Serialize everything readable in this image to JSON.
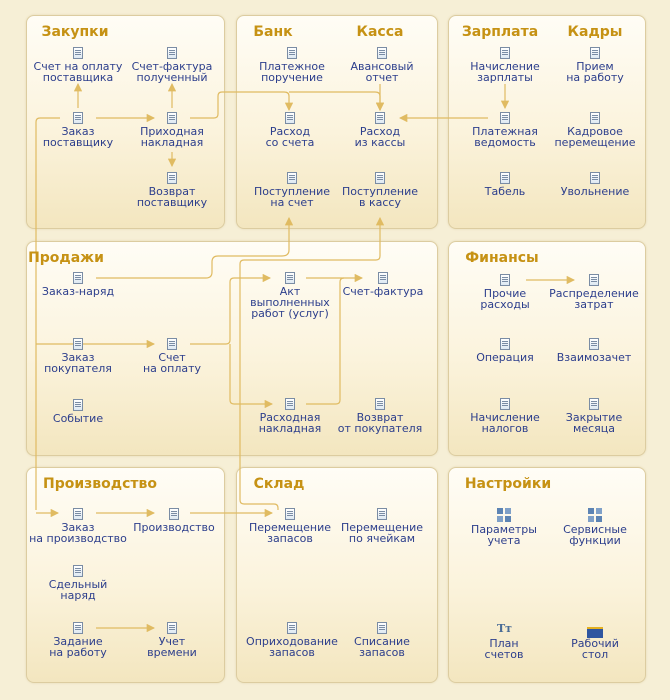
{
  "colors": {
    "title": "#c69214",
    "label": "#2c3e8c",
    "arrow": "#e0bb62"
  },
  "panels": {
    "zakupki": {
      "title": "Закупки"
    },
    "bank": {
      "title": "Банк"
    },
    "kassa": {
      "title": "Касса"
    },
    "zarplata": {
      "title": "Зарплата"
    },
    "kadry": {
      "title": "Кадры"
    },
    "prodazhi": {
      "title": "Продажи"
    },
    "finansy": {
      "title": "Финансы"
    },
    "proizvodstvo": {
      "title": "Производство"
    },
    "sklad": {
      "title": "Склад"
    },
    "nastroyki": {
      "title": "Настройки"
    }
  },
  "items": {
    "invoice_payment_supplier": "Счет на оплату\nпоставщика",
    "invoice_received": "Счет-фактура\nполученный",
    "supplier_order": "Заказ\nпоставщику",
    "incoming_invoice": "Приходная\nнакладная",
    "supplier_return": "Возврат\nпоставщику",
    "payment_order": "Платежное\nпоручение",
    "advance_report": "Авансовый\nотчет",
    "bank_expense": "Расход\nсо счета",
    "cash_expense": "Расход\nиз кассы",
    "bank_receipt": "Поступление\nна счет",
    "cash_receipt": "Поступление\nв кассу",
    "salary_accrual": "Начисление\nзарплаты",
    "hiring": "Прием\nна работу",
    "payroll": "Платежная\nведомость",
    "personnel_transfer": "Кадровое\nперемещение",
    "timesheet": "Табель",
    "dismissal": "Увольнение",
    "work_order": "Заказ-наряд",
    "act_of_services": "Акт\nвыполненных\nработ (услуг)",
    "invoice_issued": "Счет-фактура",
    "customer_order": "Заказ\nпокупателя",
    "invoice_for_payment": "Счет\nна оплату",
    "event": "Событие",
    "outgoing_invoice": "Расходная\nнакладная",
    "customer_return": "Возврат\nот покупателя",
    "other_expenses": "Прочие\nрасходы",
    "cost_allocation": "Распределение\nзатрат",
    "operation": "Операция",
    "mutual_offset": "Взаимозачет",
    "tax_accrual": "Начисление\nналогов",
    "month_close": "Закрытие\nмесяца",
    "production_order": "Заказ\nна производство",
    "production": "Производство",
    "piecework_order": "Сдельный\nнаряд",
    "job_assignment": "Задание\nна работу",
    "time_tracking": "Учет\nвремени",
    "stock_transfer": "Перемещение\nзапасов",
    "cell_transfer": "Перемещение\nпо ячейкам",
    "stock_receipt": "Оприходование\nзапасов",
    "stock_writeoff": "Списание\nзапасов",
    "accounting_params": "Параметры\nучета",
    "service_functions": "Сервисные\nфункции",
    "chart_of_accounts": "План\nсчетов",
    "desktop": "Рабочий\nстол"
  }
}
